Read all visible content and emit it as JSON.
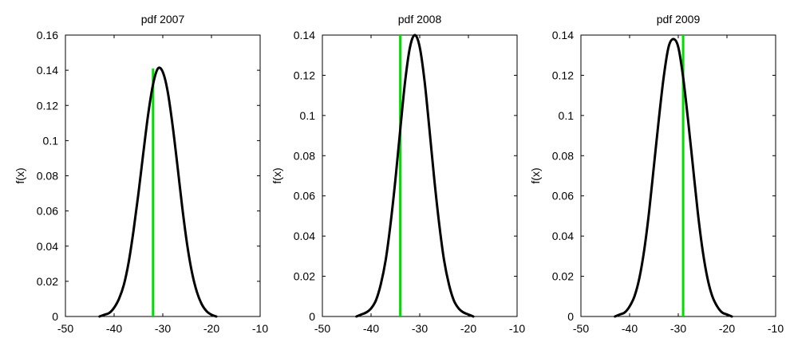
{
  "chart_data": [
    {
      "type": "line",
      "title": "pdf 2007",
      "xlabel": "",
      "ylabel": "f(x)",
      "xlim": [
        -50,
        -10
      ],
      "ylim": [
        0,
        0.16
      ],
      "xticks": [
        -50,
        -40,
        -30,
        -20,
        -10
      ],
      "xtick_labels": [
        "-50",
        "-40",
        "-30",
        "-20",
        "-10"
      ],
      "yticks": [
        0,
        0.02,
        0.04,
        0.06,
        0.08,
        0.1,
        0.12,
        0.14,
        0.16
      ],
      "ytick_labels": [
        "0",
        "0.02",
        "0.04",
        "0.06",
        "0.08",
        "0.1",
        "0.12",
        "0.14",
        "0.16"
      ],
      "grid": false,
      "series": [
        {
          "color": "#000000",
          "x": [
            -43,
            -42,
            -41,
            -40,
            -39,
            -38,
            -37,
            -36,
            -35,
            -34,
            -33,
            -32,
            -31,
            -30,
            -29,
            -28,
            -27,
            -26,
            -25,
            -24,
            -23,
            -22,
            -21,
            -20,
            -19
          ],
          "y": [
            0.0,
            0.001,
            0.002,
            0.005,
            0.01,
            0.018,
            0.031,
            0.049,
            0.07,
            0.093,
            0.115,
            0.132,
            0.141,
            0.139,
            0.128,
            0.109,
            0.086,
            0.062,
            0.041,
            0.025,
            0.014,
            0.007,
            0.003,
            0.001,
            0.0
          ]
        }
      ],
      "vertical_line": {
        "x": -32,
        "y_top": 0.141,
        "color": "#00dd00"
      }
    },
    {
      "type": "line",
      "title": "pdf 2008",
      "xlabel": "",
      "ylabel": "f(x)",
      "xlim": [
        -50,
        -10
      ],
      "ylim": [
        0,
        0.14
      ],
      "xticks": [
        -50,
        -40,
        -30,
        -20,
        -10
      ],
      "xtick_labels": [
        "-50",
        "-40",
        "-30",
        "-20",
        "-10"
      ],
      "yticks": [
        0,
        0.02,
        0.04,
        0.06,
        0.08,
        0.1,
        0.12,
        0.14
      ],
      "ytick_labels": [
        "0",
        "0.02",
        "0.04",
        "0.06",
        "0.08",
        "0.1",
        "0.12",
        "0.14"
      ],
      "grid": false,
      "series": [
        {
          "color": "#000000",
          "x": [
            -43,
            -42,
            -41,
            -40,
            -39,
            -38,
            -37,
            -36,
            -35,
            -34,
            -33,
            -32,
            -31,
            -30,
            -29,
            -28,
            -27,
            -26,
            -25,
            -24,
            -23,
            -22,
            -21,
            -20,
            -19
          ],
          "y": [
            0.0,
            0.001,
            0.002,
            0.004,
            0.008,
            0.016,
            0.028,
            0.046,
            0.068,
            0.093,
            0.117,
            0.134,
            0.14,
            0.134,
            0.117,
            0.093,
            0.068,
            0.046,
            0.028,
            0.016,
            0.008,
            0.004,
            0.002,
            0.001,
            0.0
          ]
        }
      ],
      "vertical_line": {
        "x": -34,
        "y_top": 0.14,
        "color": "#00dd00"
      }
    },
    {
      "type": "line",
      "title": "pdf 2009",
      "xlabel": "",
      "ylabel": "f(x)",
      "xlim": [
        -50,
        -10
      ],
      "ylim": [
        0,
        0.14
      ],
      "xticks": [
        -50,
        -40,
        -30,
        -20,
        -10
      ],
      "xtick_labels": [
        "-50",
        "-40",
        "-30",
        "-20",
        "-10"
      ],
      "yticks": [
        0,
        0.02,
        0.04,
        0.06,
        0.08,
        0.1,
        0.12,
        0.14
      ],
      "ytick_labels": [
        "0",
        "0.02",
        "0.04",
        "0.06",
        "0.08",
        "0.1",
        "0.12",
        "0.14"
      ],
      "grid": false,
      "series": [
        {
          "color": "#000000",
          "x": [
            -43,
            -42,
            -41,
            -40,
            -39,
            -38,
            -37,
            -36,
            -35,
            -34,
            -33,
            -32,
            -31,
            -30,
            -29,
            -28,
            -27,
            -26,
            -25,
            -24,
            -23,
            -22,
            -21,
            -20,
            -19
          ],
          "y": [
            0.0,
            0.001,
            0.002,
            0.005,
            0.01,
            0.019,
            0.033,
            0.052,
            0.075,
            0.098,
            0.119,
            0.134,
            0.138,
            0.134,
            0.119,
            0.098,
            0.075,
            0.052,
            0.033,
            0.019,
            0.01,
            0.005,
            0.002,
            0.001,
            0.0
          ]
        }
      ],
      "vertical_line": {
        "x": -29,
        "y_top": 0.14,
        "color": "#00dd00"
      }
    }
  ]
}
